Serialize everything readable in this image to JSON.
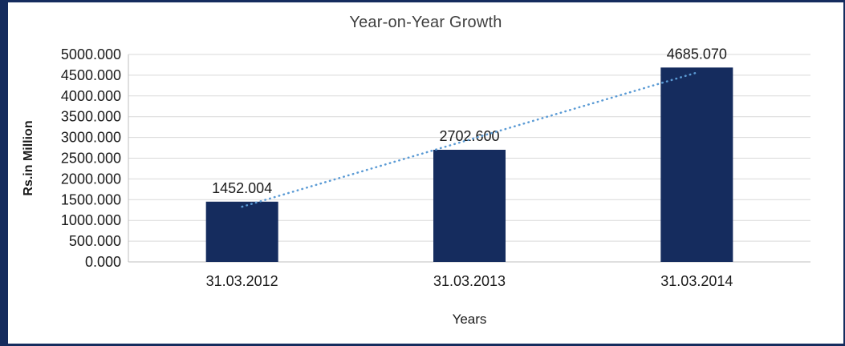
{
  "chart_data": {
    "type": "bar",
    "title": "Year-on-Year Growth",
    "xlabel": "Years",
    "ylabel": "Rs.in Million",
    "categories": [
      "31.03.2012",
      "31.03.2013",
      "31.03.2014"
    ],
    "values": [
      1452.004,
      2702.6,
      4685.07
    ],
    "data_labels": [
      "1452.004",
      "2702.600",
      "4685.070"
    ],
    "ylim": [
      0,
      5000
    ],
    "ytick_step": 500,
    "ytick_decimals": 3,
    "ytick_labels": [
      "0.000",
      "500.000",
      "1000.000",
      "1500.000",
      "2000.000",
      "2500.000",
      "3000.000",
      "3500.000",
      "4000.000",
      "4500.000",
      "5000.000"
    ],
    "grid": true,
    "legend": "none",
    "bar_color": "#152C5E",
    "gridline_color": "#D9D9D9",
    "axis_line_color": "#BFBFBF",
    "text_color": "#1A1A1A",
    "title_color": "#404040",
    "frame_color": "#152C5E",
    "trendline": {
      "type": "linear",
      "style": "dotted",
      "color": "#5B9BD5"
    }
  }
}
